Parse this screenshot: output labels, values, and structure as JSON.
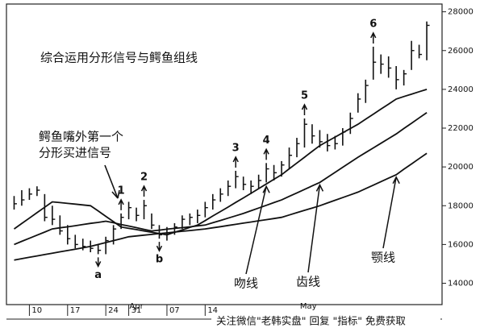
{
  "chart_data": {
    "type": "ohlc",
    "title": "综合运用分形信号与鳄鱼组线",
    "ylim": [
      12900,
      28400
    ],
    "yticks": [
      14000,
      16000,
      18000,
      20000,
      22000,
      24000,
      26000,
      28000
    ],
    "xlim": [
      -1,
      56
    ],
    "xticks": [
      {
        "value": 2,
        "label": "10"
      },
      {
        "value": 7,
        "label": "17"
      },
      {
        "value": 12,
        "label": "24"
      },
      {
        "value": 15,
        "label": "31"
      },
      {
        "value": 20,
        "label": "07"
      },
      {
        "value": 25,
        "label": "14"
      }
    ],
    "month_ticks": [
      {
        "value": 16,
        "label": "Apr"
      },
      {
        "value": 38.5,
        "label": "May"
      }
    ],
    "high": [
      18500,
      18800,
      18900,
      19000,
      18600,
      18000,
      17500,
      17000,
      16500,
      16300,
      16200,
      16000,
      16400,
      17000,
      17600,
      18200,
      17900,
      18300,
      17600,
      17000,
      16900,
      17100,
      17500,
      17600,
      17800,
      18200,
      18600,
      18900,
      19300,
      19800,
      19500,
      19300,
      19600,
      20200,
      20100,
      20300,
      21000,
      21500,
      22500,
      22200,
      21900,
      21700,
      21600,
      22000,
      22800,
      23800,
      24500,
      26200,
      25800,
      25700,
      25200,
      25000,
      26500,
      26300,
      27500
    ],
    "low": [
      17800,
      18000,
      18300,
      18500,
      17200,
      17000,
      16500,
      16000,
      15800,
      15700,
      15600,
      15500,
      15500,
      16000,
      16800,
      17300,
      17200,
      17300,
      16800,
      16300,
      16200,
      16500,
      16800,
      17000,
      17100,
      17400,
      17800,
      18200,
      18500,
      18900,
      18800,
      18600,
      18900,
      19200,
      19300,
      19500,
      19900,
      20500,
      21000,
      21200,
      21000,
      20800,
      20900,
      21100,
      21700,
      22800,
      23300,
      24500,
      24800,
      24600,
      24000,
      24200,
      25000,
      25600,
      25500
    ],
    "close": [
      18100,
      18300,
      18600,
      18800,
      17400,
      17300,
      16700,
      16300,
      16000,
      15900,
      15800,
      15700,
      16200,
      16800,
      17400,
      17900,
      17500,
      18000,
      17000,
      16500,
      16600,
      16900,
      17300,
      17400,
      17500,
      17900,
      18300,
      18600,
      19000,
      19500,
      19100,
      19000,
      19300,
      19900,
      19700,
      20100,
      20600,
      21200,
      22200,
      21600,
      21300,
      21100,
      21200,
      21800,
      22500,
      23500,
      24200,
      25400,
      25300,
      25100,
      24500,
      24800,
      26000,
      25800,
      27300
    ],
    "series": [
      {
        "name": "吻线",
        "color": "#111",
        "values": [
          16800,
          17080,
          17360,
          17640,
          17920,
          18200,
          18160,
          18120,
          18080,
          18040,
          18000,
          17730,
          17450,
          17180,
          16900,
          16830,
          16770,
          16700,
          16630,
          16570,
          16500,
          16630,
          16750,
          16880,
          17000,
          17230,
          17470,
          17700,
          17930,
          18170,
          18400,
          18640,
          18880,
          19120,
          19360,
          19600,
          19900,
          20200,
          20500,
          20800,
          21100,
          21320,
          21540,
          21760,
          21980,
          22200,
          22460,
          22720,
          22980,
          23240,
          23500,
          23630,
          23750,
          23880,
          24000
        ]
      },
      {
        "name": "齿线",
        "color": "#111",
        "values": [
          16000,
          16160,
          16320,
          16480,
          16640,
          16800,
          16860,
          16910,
          16970,
          17030,
          17090,
          17140,
          17200,
          17120,
          17030,
          16950,
          16870,
          16780,
          16700,
          16740,
          16790,
          16830,
          16870,
          16910,
          16960,
          17000,
          17120,
          17240,
          17360,
          17480,
          17600,
          17740,
          17880,
          18020,
          18160,
          18300,
          18480,
          18660,
          18840,
          19020,
          19200,
          19460,
          19720,
          19980,
          20240,
          20500,
          20740,
          20980,
          21220,
          21460,
          21700,
          21980,
          22250,
          22530,
          22800
        ]
      },
      {
        "name": "颚线",
        "color": "#111",
        "values": [
          15200,
          15270,
          15340,
          15410,
          15480,
          15550,
          15620,
          15690,
          15760,
          15830,
          15900,
          16000,
          16100,
          16200,
          16300,
          16400,
          16440,
          16480,
          16520,
          16560,
          16600,
          16640,
          16680,
          16720,
          16760,
          16800,
          16860,
          16920,
          16980,
          17040,
          17100,
          17160,
          17220,
          17280,
          17340,
          17400,
          17520,
          17640,
          17760,
          17880,
          18000,
          18140,
          18280,
          18420,
          18560,
          18700,
          18880,
          19060,
          19240,
          19420,
          19600,
          19880,
          20150,
          20430,
          20700
        ]
      }
    ],
    "fractals_up": [
      {
        "index": 14,
        "label": "1"
      },
      {
        "index": 17,
        "label": "2"
      },
      {
        "index": 29,
        "label": "3"
      },
      {
        "index": 33,
        "label": "4"
      },
      {
        "index": 38,
        "label": "5"
      },
      {
        "index": 47,
        "label": "6"
      }
    ],
    "fractals_down": [
      {
        "index": 11,
        "label": "a"
      },
      {
        "index": 19,
        "label": "b"
      }
    ],
    "annotation": [
      "鳄鱼嘴外第一个",
      "分形买进信号"
    ],
    "watermark": "关注微信\"老韩实盘\" 回复 \"指标\" 免费获取"
  }
}
